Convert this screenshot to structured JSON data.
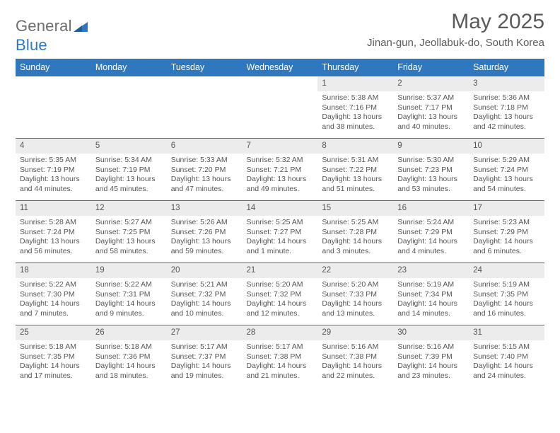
{
  "brand": {
    "part1": "General",
    "part2": "Blue"
  },
  "title": "May 2025",
  "location": "Jinan-gun, Jeollabuk-do, South Korea",
  "colors": {
    "header_bg": "#2f78bf",
    "header_fg": "#ffffff",
    "daynum_bg": "#ececec",
    "row_border": "#2f78bf",
    "text": "#555555",
    "logo_gray": "#6e6e6e",
    "logo_blue": "#2f78bf"
  },
  "weekdays": [
    "Sunday",
    "Monday",
    "Tuesday",
    "Wednesday",
    "Thursday",
    "Friday",
    "Saturday"
  ],
  "weeks": [
    [
      null,
      null,
      null,
      null,
      {
        "n": "1",
        "sr": "Sunrise: 5:38 AM",
        "ss": "Sunset: 7:16 PM",
        "d1": "Daylight: 13 hours",
        "d2": "and 38 minutes."
      },
      {
        "n": "2",
        "sr": "Sunrise: 5:37 AM",
        "ss": "Sunset: 7:17 PM",
        "d1": "Daylight: 13 hours",
        "d2": "and 40 minutes."
      },
      {
        "n": "3",
        "sr": "Sunrise: 5:36 AM",
        "ss": "Sunset: 7:18 PM",
        "d1": "Daylight: 13 hours",
        "d2": "and 42 minutes."
      }
    ],
    [
      {
        "n": "4",
        "sr": "Sunrise: 5:35 AM",
        "ss": "Sunset: 7:19 PM",
        "d1": "Daylight: 13 hours",
        "d2": "and 44 minutes."
      },
      {
        "n": "5",
        "sr": "Sunrise: 5:34 AM",
        "ss": "Sunset: 7:19 PM",
        "d1": "Daylight: 13 hours",
        "d2": "and 45 minutes."
      },
      {
        "n": "6",
        "sr": "Sunrise: 5:33 AM",
        "ss": "Sunset: 7:20 PM",
        "d1": "Daylight: 13 hours",
        "d2": "and 47 minutes."
      },
      {
        "n": "7",
        "sr": "Sunrise: 5:32 AM",
        "ss": "Sunset: 7:21 PM",
        "d1": "Daylight: 13 hours",
        "d2": "and 49 minutes."
      },
      {
        "n": "8",
        "sr": "Sunrise: 5:31 AM",
        "ss": "Sunset: 7:22 PM",
        "d1": "Daylight: 13 hours",
        "d2": "and 51 minutes."
      },
      {
        "n": "9",
        "sr": "Sunrise: 5:30 AM",
        "ss": "Sunset: 7:23 PM",
        "d1": "Daylight: 13 hours",
        "d2": "and 53 minutes."
      },
      {
        "n": "10",
        "sr": "Sunrise: 5:29 AM",
        "ss": "Sunset: 7:24 PM",
        "d1": "Daylight: 13 hours",
        "d2": "and 54 minutes."
      }
    ],
    [
      {
        "n": "11",
        "sr": "Sunrise: 5:28 AM",
        "ss": "Sunset: 7:24 PM",
        "d1": "Daylight: 13 hours",
        "d2": "and 56 minutes."
      },
      {
        "n": "12",
        "sr": "Sunrise: 5:27 AM",
        "ss": "Sunset: 7:25 PM",
        "d1": "Daylight: 13 hours",
        "d2": "and 58 minutes."
      },
      {
        "n": "13",
        "sr": "Sunrise: 5:26 AM",
        "ss": "Sunset: 7:26 PM",
        "d1": "Daylight: 13 hours",
        "d2": "and 59 minutes."
      },
      {
        "n": "14",
        "sr": "Sunrise: 5:25 AM",
        "ss": "Sunset: 7:27 PM",
        "d1": "Daylight: 14 hours",
        "d2": "and 1 minute."
      },
      {
        "n": "15",
        "sr": "Sunrise: 5:25 AM",
        "ss": "Sunset: 7:28 PM",
        "d1": "Daylight: 14 hours",
        "d2": "and 3 minutes."
      },
      {
        "n": "16",
        "sr": "Sunrise: 5:24 AM",
        "ss": "Sunset: 7:29 PM",
        "d1": "Daylight: 14 hours",
        "d2": "and 4 minutes."
      },
      {
        "n": "17",
        "sr": "Sunrise: 5:23 AM",
        "ss": "Sunset: 7:29 PM",
        "d1": "Daylight: 14 hours",
        "d2": "and 6 minutes."
      }
    ],
    [
      {
        "n": "18",
        "sr": "Sunrise: 5:22 AM",
        "ss": "Sunset: 7:30 PM",
        "d1": "Daylight: 14 hours",
        "d2": "and 7 minutes."
      },
      {
        "n": "19",
        "sr": "Sunrise: 5:22 AM",
        "ss": "Sunset: 7:31 PM",
        "d1": "Daylight: 14 hours",
        "d2": "and 9 minutes."
      },
      {
        "n": "20",
        "sr": "Sunrise: 5:21 AM",
        "ss": "Sunset: 7:32 PM",
        "d1": "Daylight: 14 hours",
        "d2": "and 10 minutes."
      },
      {
        "n": "21",
        "sr": "Sunrise: 5:20 AM",
        "ss": "Sunset: 7:32 PM",
        "d1": "Daylight: 14 hours",
        "d2": "and 12 minutes."
      },
      {
        "n": "22",
        "sr": "Sunrise: 5:20 AM",
        "ss": "Sunset: 7:33 PM",
        "d1": "Daylight: 14 hours",
        "d2": "and 13 minutes."
      },
      {
        "n": "23",
        "sr": "Sunrise: 5:19 AM",
        "ss": "Sunset: 7:34 PM",
        "d1": "Daylight: 14 hours",
        "d2": "and 14 minutes."
      },
      {
        "n": "24",
        "sr": "Sunrise: 5:19 AM",
        "ss": "Sunset: 7:35 PM",
        "d1": "Daylight: 14 hours",
        "d2": "and 16 minutes."
      }
    ],
    [
      {
        "n": "25",
        "sr": "Sunrise: 5:18 AM",
        "ss": "Sunset: 7:35 PM",
        "d1": "Daylight: 14 hours",
        "d2": "and 17 minutes."
      },
      {
        "n": "26",
        "sr": "Sunrise: 5:18 AM",
        "ss": "Sunset: 7:36 PM",
        "d1": "Daylight: 14 hours",
        "d2": "and 18 minutes."
      },
      {
        "n": "27",
        "sr": "Sunrise: 5:17 AM",
        "ss": "Sunset: 7:37 PM",
        "d1": "Daylight: 14 hours",
        "d2": "and 19 minutes."
      },
      {
        "n": "28",
        "sr": "Sunrise: 5:17 AM",
        "ss": "Sunset: 7:38 PM",
        "d1": "Daylight: 14 hours",
        "d2": "and 21 minutes."
      },
      {
        "n": "29",
        "sr": "Sunrise: 5:16 AM",
        "ss": "Sunset: 7:38 PM",
        "d1": "Daylight: 14 hours",
        "d2": "and 22 minutes."
      },
      {
        "n": "30",
        "sr": "Sunrise: 5:16 AM",
        "ss": "Sunset: 7:39 PM",
        "d1": "Daylight: 14 hours",
        "d2": "and 23 minutes."
      },
      {
        "n": "31",
        "sr": "Sunrise: 5:15 AM",
        "ss": "Sunset: 7:40 PM",
        "d1": "Daylight: 14 hours",
        "d2": "and 24 minutes."
      }
    ]
  ]
}
